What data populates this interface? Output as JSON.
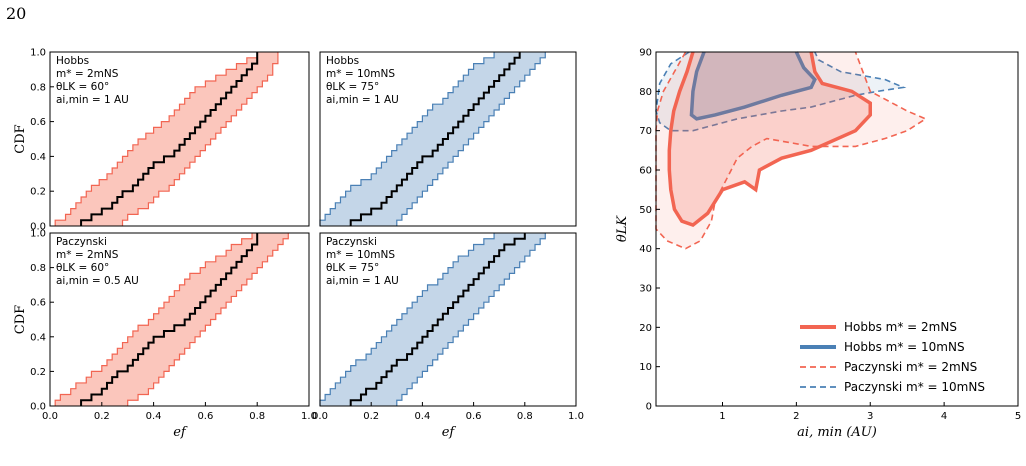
{
  "page": {
    "number": "20"
  },
  "colors": {
    "hobbs": "#f26552",
    "paczynski": "#4a80b5",
    "hobbs_fill": "#fbc6bc",
    "paczynski_fill": "#c4d6e8",
    "median": "#000000"
  },
  "chart_data": [
    {
      "type": "line",
      "panel": "top-left",
      "annotation": [
        "Hobbs",
        "m* = 2mNS",
        "θLK = 60°",
        "ai,min = 1 AU"
      ],
      "ylabel": "CDF",
      "xlabel": "",
      "xlim": [
        0,
        1
      ],
      "ylim": [
        0,
        1
      ],
      "xticks": [],
      "yticks": [
        "0.0",
        "0.2",
        "0.4",
        "0.6",
        "0.8",
        "1.0"
      ],
      "series": [
        {
          "role": "lower",
          "x": [
            0.02,
            0.06,
            0.08,
            0.1,
            0.12,
            0.14,
            0.16,
            0.19,
            0.22,
            0.24,
            0.26,
            0.28,
            0.3,
            0.32,
            0.34,
            0.37,
            0.4,
            0.43,
            0.46,
            0.48,
            0.5,
            0.52,
            0.54,
            0.56,
            0.6,
            0.64,
            0.68,
            0.72,
            0.76,
            0.8
          ]
        },
        {
          "role": "median",
          "x": [
            0.12,
            0.16,
            0.2,
            0.24,
            0.26,
            0.28,
            0.32,
            0.34,
            0.36,
            0.38,
            0.4,
            0.44,
            0.48,
            0.5,
            0.52,
            0.54,
            0.56,
            0.58,
            0.6,
            0.62,
            0.64,
            0.66,
            0.68,
            0.7,
            0.72,
            0.74,
            0.76,
            0.78,
            0.8,
            0.8
          ]
        },
        {
          "role": "upper",
          "x": [
            0.28,
            0.3,
            0.34,
            0.38,
            0.4,
            0.42,
            0.46,
            0.48,
            0.5,
            0.52,
            0.54,
            0.56,
            0.58,
            0.6,
            0.62,
            0.64,
            0.66,
            0.68,
            0.7,
            0.72,
            0.74,
            0.76,
            0.78,
            0.8,
            0.82,
            0.84,
            0.86,
            0.86,
            0.88,
            0.88
          ]
        }
      ]
    },
    {
      "type": "line",
      "panel": "top-middle",
      "annotation": [
        "Hobbs",
        "m* = 10mNS",
        "θLK = 75°",
        "ai,min = 1 AU"
      ],
      "ylabel": "",
      "xlabel": "",
      "xlim": [
        0,
        1
      ],
      "ylim": [
        0,
        1
      ],
      "xticks": [],
      "yticks": [],
      "series": [
        {
          "role": "lower",
          "x": [
            0.0,
            0.02,
            0.04,
            0.06,
            0.08,
            0.1,
            0.12,
            0.16,
            0.2,
            0.22,
            0.24,
            0.26,
            0.28,
            0.3,
            0.32,
            0.34,
            0.36,
            0.38,
            0.4,
            0.42,
            0.44,
            0.48,
            0.5,
            0.52,
            0.54,
            0.56,
            0.58,
            0.6,
            0.64,
            0.68
          ]
        },
        {
          "role": "median",
          "x": [
            0.12,
            0.16,
            0.2,
            0.24,
            0.26,
            0.28,
            0.3,
            0.32,
            0.34,
            0.36,
            0.38,
            0.4,
            0.44,
            0.46,
            0.48,
            0.5,
            0.52,
            0.54,
            0.56,
            0.58,
            0.6,
            0.62,
            0.64,
            0.66,
            0.68,
            0.7,
            0.72,
            0.74,
            0.76,
            0.78
          ]
        },
        {
          "role": "upper",
          "x": [
            0.3,
            0.32,
            0.34,
            0.36,
            0.38,
            0.4,
            0.42,
            0.44,
            0.46,
            0.48,
            0.5,
            0.52,
            0.54,
            0.56,
            0.58,
            0.6,
            0.62,
            0.64,
            0.66,
            0.68,
            0.7,
            0.72,
            0.74,
            0.76,
            0.78,
            0.8,
            0.82,
            0.84,
            0.86,
            0.88
          ]
        }
      ]
    },
    {
      "type": "line",
      "panel": "bottom-left",
      "annotation": [
        "Paczynski",
        "m* = 2mNS",
        "θLK = 60°",
        "ai,min = 0.5 AU"
      ],
      "ylabel": "CDF",
      "xlabel": "ef",
      "xlim": [
        0,
        1
      ],
      "ylim": [
        0,
        1
      ],
      "xticks": [
        "0.0",
        "0.2",
        "0.4",
        "0.6",
        "0.8",
        "1.0"
      ],
      "yticks": [
        "0.0",
        "0.2",
        "0.4",
        "0.6",
        "0.8",
        "1.0"
      ],
      "series": [
        {
          "role": "lower",
          "x": [
            0.02,
            0.04,
            0.08,
            0.1,
            0.14,
            0.16,
            0.2,
            0.22,
            0.24,
            0.26,
            0.28,
            0.3,
            0.32,
            0.34,
            0.38,
            0.4,
            0.42,
            0.44,
            0.46,
            0.48,
            0.5,
            0.52,
            0.54,
            0.58,
            0.6,
            0.64,
            0.68,
            0.7,
            0.74,
            0.78
          ]
        },
        {
          "role": "median",
          "x": [
            0.12,
            0.16,
            0.2,
            0.22,
            0.24,
            0.26,
            0.3,
            0.32,
            0.34,
            0.36,
            0.38,
            0.4,
            0.44,
            0.48,
            0.52,
            0.54,
            0.56,
            0.58,
            0.6,
            0.62,
            0.64,
            0.66,
            0.68,
            0.7,
            0.72,
            0.74,
            0.76,
            0.78,
            0.8,
            0.8
          ]
        },
        {
          "role": "upper",
          "x": [
            0.3,
            0.34,
            0.38,
            0.4,
            0.42,
            0.44,
            0.46,
            0.48,
            0.5,
            0.52,
            0.54,
            0.56,
            0.58,
            0.6,
            0.62,
            0.64,
            0.66,
            0.68,
            0.7,
            0.72,
            0.74,
            0.76,
            0.78,
            0.8,
            0.82,
            0.84,
            0.86,
            0.88,
            0.9,
            0.92
          ]
        }
      ]
    },
    {
      "type": "line",
      "panel": "bottom-middle",
      "annotation": [
        "Paczynski",
        "m* = 10mNS",
        "θLK = 75°",
        "ai,min = 1 AU"
      ],
      "ylabel": "",
      "xlabel": "ef",
      "xlim": [
        0,
        1
      ],
      "ylim": [
        0,
        1
      ],
      "xticks": [
        "0.0",
        "0.2",
        "0.4",
        "0.6",
        "0.8",
        "1.0"
      ],
      "yticks": [],
      "series": [
        {
          "role": "lower",
          "x": [
            0.0,
            0.02,
            0.04,
            0.06,
            0.08,
            0.1,
            0.12,
            0.14,
            0.18,
            0.2,
            0.22,
            0.24,
            0.26,
            0.28,
            0.3,
            0.32,
            0.34,
            0.36,
            0.38,
            0.4,
            0.42,
            0.46,
            0.48,
            0.5,
            0.52,
            0.54,
            0.58,
            0.6,
            0.64,
            0.68
          ]
        },
        {
          "role": "median",
          "x": [
            0.12,
            0.16,
            0.18,
            0.22,
            0.24,
            0.26,
            0.28,
            0.3,
            0.34,
            0.36,
            0.38,
            0.4,
            0.42,
            0.44,
            0.46,
            0.48,
            0.5,
            0.52,
            0.54,
            0.56,
            0.58,
            0.6,
            0.62,
            0.64,
            0.66,
            0.68,
            0.7,
            0.72,
            0.76,
            0.8
          ]
        },
        {
          "role": "upper",
          "x": [
            0.3,
            0.32,
            0.34,
            0.36,
            0.38,
            0.4,
            0.42,
            0.44,
            0.46,
            0.48,
            0.5,
            0.52,
            0.54,
            0.56,
            0.58,
            0.6,
            0.62,
            0.64,
            0.66,
            0.68,
            0.7,
            0.72,
            0.74,
            0.76,
            0.78,
            0.8,
            0.82,
            0.84,
            0.86,
            0.88
          ]
        }
      ]
    },
    {
      "type": "area",
      "panel": "right",
      "xlabel": "ai, min (AU)",
      "ylabel": "θLK",
      "xlim": [
        0.1,
        5
      ],
      "ylim": [
        0,
        90
      ],
      "xticks": [
        "1",
        "2",
        "3",
        "4",
        "5"
      ],
      "yticks": [
        "0",
        "10",
        "20",
        "30",
        "40",
        "50",
        "60",
        "70",
        "80",
        "90"
      ],
      "legend": "bottom-right",
      "series": [
        {
          "name": "Hobbs m* = 2mNS",
          "style": "solid-thick",
          "color": "hobbs",
          "points": [
            [
              0.6,
              90
            ],
            [
              0.52,
              85
            ],
            [
              0.42,
              80
            ],
            [
              0.34,
              75
            ],
            [
              0.3,
              70
            ],
            [
              0.28,
              65
            ],
            [
              0.28,
              60
            ],
            [
              0.3,
              55
            ],
            [
              0.35,
              50
            ],
            [
              0.45,
              47
            ],
            [
              0.6,
              46
            ],
            [
              0.8,
              49
            ],
            [
              1.0,
              55
            ],
            [
              1.3,
              57
            ],
            [
              1.45,
              55
            ],
            [
              1.5,
              60
            ],
            [
              1.8,
              63
            ],
            [
              2.2,
              65
            ],
            [
              2.8,
              70
            ],
            [
              3.0,
              74
            ],
            [
              3.0,
              77
            ],
            [
              2.75,
              80
            ],
            [
              2.35,
              82
            ],
            [
              2.25,
              85
            ],
            [
              2.2,
              90
            ]
          ]
        },
        {
          "name": "Hobbs m* = 10mNS",
          "style": "solid-thick",
          "color": "paczynski",
          "points": [
            [
              0.75,
              90
            ],
            [
              0.65,
              85
            ],
            [
              0.6,
              80
            ],
            [
              0.58,
              74
            ],
            [
              0.65,
              73
            ],
            [
              0.9,
              74
            ],
            [
              1.3,
              76
            ],
            [
              1.8,
              79
            ],
            [
              2.2,
              81
            ],
            [
              2.25,
              83
            ],
            [
              2.1,
              86
            ],
            [
              2.0,
              90
            ]
          ]
        },
        {
          "name": "Paczynski m* = 2mNS",
          "style": "dashed",
          "color": "hobbs",
          "points": [
            [
              0.5,
              90
            ],
            [
              0.35,
              85
            ],
            [
              0.2,
              80
            ],
            [
              0.12,
              75
            ],
            [
              0.1,
              70
            ],
            [
              0.1,
              55
            ],
            [
              0.1,
              45
            ],
            [
              0.25,
              42
            ],
            [
              0.5,
              40
            ],
            [
              0.7,
              42
            ],
            [
              0.85,
              47
            ],
            [
              0.9,
              52
            ],
            [
              1.2,
              63
            ],
            [
              1.4,
              66
            ],
            [
              1.6,
              68
            ],
            [
              2.2,
              66
            ],
            [
              2.8,
              66
            ],
            [
              3.2,
              68
            ],
            [
              3.5,
              70
            ],
            [
              3.75,
              73
            ],
            [
              3.5,
              75
            ],
            [
              3.0,
              80
            ],
            [
              2.9,
              85
            ],
            [
              2.8,
              90
            ]
          ]
        },
        {
          "name": "Paczynski m* = 10mNS",
          "style": "dashed",
          "color": "paczynski",
          "points": [
            [
              0.55,
              90
            ],
            [
              0.3,
              87
            ],
            [
              0.15,
              82
            ],
            [
              0.1,
              75
            ],
            [
              0.15,
              72
            ],
            [
              0.3,
              70
            ],
            [
              0.6,
              70
            ],
            [
              1.2,
              73
            ],
            [
              1.8,
              75
            ],
            [
              2.2,
              76
            ],
            [
              2.8,
              79
            ],
            [
              3.1,
              80
            ],
            [
              3.45,
              81
            ],
            [
              3.2,
              83
            ],
            [
              2.6,
              85
            ],
            [
              2.3,
              88
            ],
            [
              2.25,
              90
            ]
          ]
        }
      ]
    }
  ],
  "legend": [
    {
      "label": "Hobbs m* = 2mNS",
      "color": "#f26552",
      "style": "solid"
    },
    {
      "label": "Hobbs m* = 10mNS",
      "color": "#4a80b5",
      "style": "solid"
    },
    {
      "label": "Paczynski m* = 2mNS",
      "color": "#f26552",
      "style": "dashed"
    },
    {
      "label": "Paczynski m* = 10mNS",
      "color": "#4a80b5",
      "style": "dashed"
    }
  ]
}
